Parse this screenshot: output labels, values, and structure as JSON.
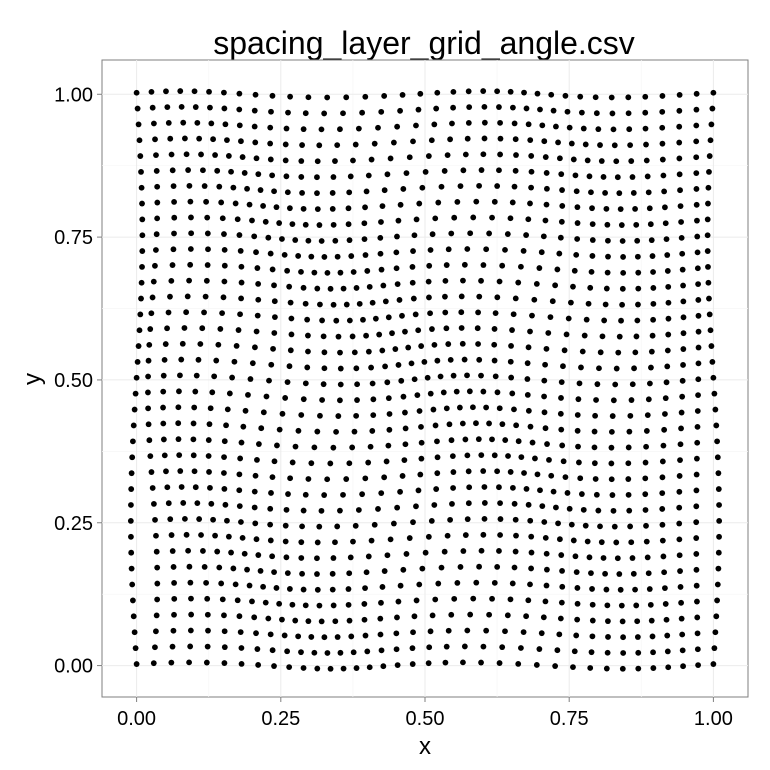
{
  "chart_data": {
    "type": "scatter",
    "title": "spacing_layer_grid_angle.csv",
    "xlabel": "x",
    "ylabel": "y",
    "xlim": [
      -0.06,
      1.06
    ],
    "ylim": [
      -0.055,
      1.06
    ],
    "xticks": [
      0.0,
      0.25,
      0.5,
      0.75,
      1.0
    ],
    "xtick_labels": [
      "0.00",
      "0.25",
      "0.50",
      "0.75",
      "1.00"
    ],
    "yticks": [
      0.0,
      0.25,
      0.5,
      0.75,
      1.0
    ],
    "ytick_labels": [
      "0.00",
      "0.25",
      "0.50",
      "0.75",
      "1.00"
    ],
    "grid": true,
    "legend": "none",
    "point_color": "#000000",
    "grid_spec": {
      "columns": 37,
      "rows": 37,
      "x_range": [
        0,
        1
      ],
      "y_range": [
        0,
        1
      ],
      "description": "Regular 37x37 lattice of points over [0,1]x[0,1], displaced by a smooth wave-like distortion field"
    }
  }
}
